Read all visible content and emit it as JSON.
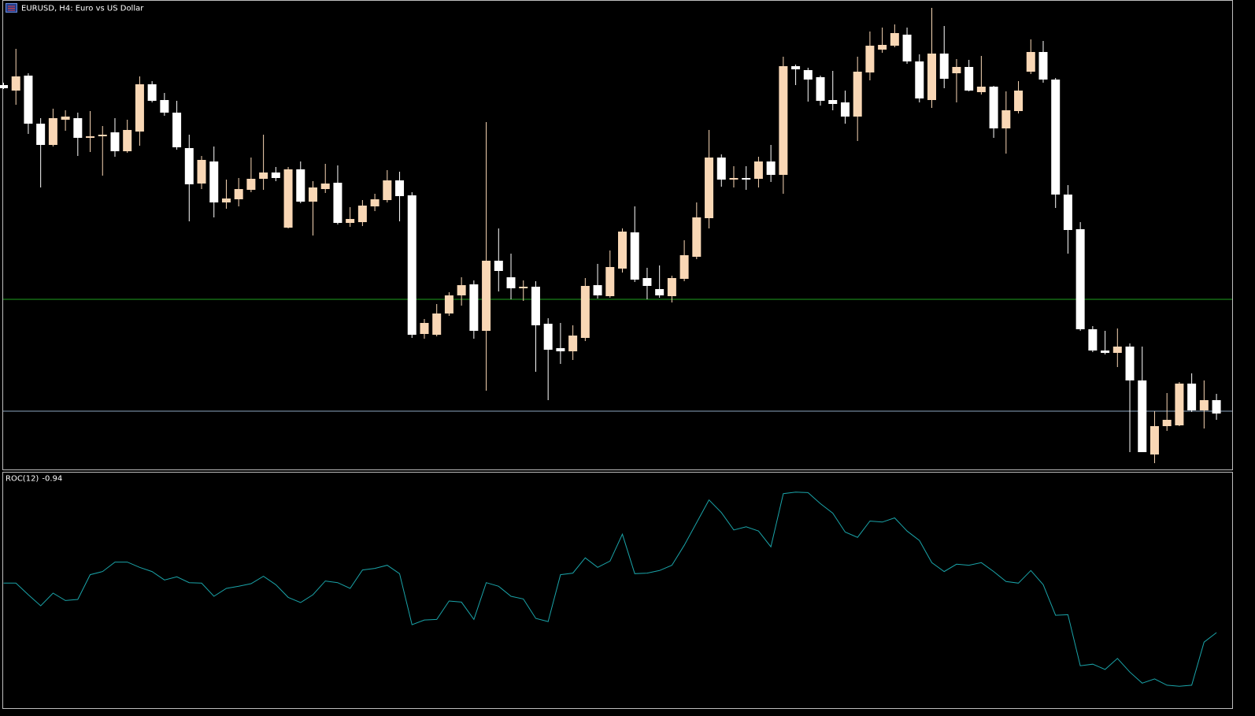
{
  "chart_data": [
    {
      "type": "candlestick",
      "title": "EURUSD, H4:  Euro vs US Dollar",
      "ylim": [
        3,
        600
      ],
      "up_color": "#f9d7b5",
      "down_color": "#ffffff",
      "open": [
        492,
        485,
        504,
        443,
        416,
        448,
        450,
        425,
        427,
        432,
        408,
        433,
        493,
        473,
        457,
        412,
        367,
        395,
        343,
        347,
        359,
        373,
        381,
        311,
        385,
        344,
        360,
        368,
        317,
        318,
        338,
        346,
        371,
        352,
        176,
        175,
        202,
        225,
        239,
        180,
        269,
        248,
        234,
        236,
        189,
        158,
        154,
        171,
        238,
        224,
        259,
        305,
        247,
        233,
        224,
        246,
        274,
        323,
        400,
        372,
        374,
        373,
        395,
        378,
        516,
        511,
        502,
        473,
        470,
        452,
        508,
        537,
        542,
        556,
        522,
        473,
        532,
        507,
        515,
        483,
        490,
        437,
        459,
        509,
        534,
        499,
        353,
        309,
        182,
        155,
        152,
        160,
        117,
        23,
        59,
        60,
        113,
        79,
        92
      ],
      "high": [
        495,
        538,
        507,
        450,
        462,
        460,
        457,
        459,
        440,
        450,
        448,
        503,
        497,
        482,
        472,
        429,
        402,
        414,
        372,
        374,
        400,
        429,
        388,
        388,
        395,
        370,
        392,
        390,
        337,
        346,
        354,
        384,
        382,
        356,
        195,
        214,
        229,
        248,
        244,
        445,
        310,
        278,
        244,
        243,
        196,
        190,
        187,
        247,
        265,
        282,
        310,
        338,
        260,
        263,
        250,
        295,
        343,
        435,
        404,
        389,
        389,
        401,
        416,
        528,
        518,
        514,
        504,
        510,
        485,
        528,
        560,
        565,
        569,
        565,
        531,
        590,
        567,
        525,
        524,
        529,
        491,
        484,
        497,
        550,
        548,
        501,
        365,
        318,
        186,
        180,
        183,
        164,
        160,
        78,
        101,
        115,
        126,
        117,
        100
      ],
      "low": [
        487,
        467,
        430,
        362,
        414,
        434,
        402,
        407,
        377,
        401,
        406,
        415,
        470,
        453,
        410,
        319,
        360,
        324,
        335,
        338,
        356,
        359,
        370,
        310,
        342,
        301,
        355,
        315,
        312,
        313,
        332,
        343,
        319,
        171,
        170,
        173,
        199,
        212,
        170,
        104,
        230,
        220,
        218,
        128,
        92,
        138,
        143,
        167,
        221,
        222,
        254,
        242,
        220,
        222,
        216,
        243,
        271,
        310,
        363,
        362,
        359,
        362,
        369,
        354,
        492,
        471,
        466,
        460,
        443,
        421,
        498,
        533,
        540,
        519,
        470,
        463,
        488,
        470,
        484,
        480,
        425,
        405,
        456,
        506,
        495,
        336,
        278,
        180,
        153,
        150,
        134,
        26,
        26,
        12,
        53,
        59,
        77,
        56,
        67
      ],
      "close": [
        488,
        503,
        443,
        416,
        450,
        452,
        425,
        427,
        429,
        408,
        435,
        493,
        472,
        457,
        413,
        366,
        397,
        343,
        348,
        360,
        373,
        381,
        374,
        385,
        344,
        362,
        367,
        317,
        322,
        339,
        347,
        371,
        351,
        175,
        190,
        202,
        225,
        238,
        180,
        269,
        256,
        234,
        236,
        187,
        156,
        154,
        174,
        237,
        225,
        261,
        306,
        245,
        237,
        225,
        247,
        276,
        324,
        400,
        372,
        374,
        372,
        395,
        378,
        516,
        512,
        499,
        472,
        468,
        452,
        509,
        542,
        543,
        558,
        522,
        475,
        532,
        500,
        515,
        485,
        490,
        437,
        460,
        485,
        534,
        499,
        353,
        308,
        182,
        155,
        152,
        160,
        117,
        26,
        59,
        67,
        113,
        79,
        92,
        75
      ],
      "hlines": [
        {
          "value": 220,
          "color": "#1f9f1f"
        },
        {
          "value": 78,
          "color": "#8ca6c0"
        }
      ]
    },
    {
      "type": "line",
      "title": "ROC(12)",
      "ylim": [
        -2.3,
        2.1
      ],
      "series": [
        {
          "name": "ROC(12)",
          "color": "#1aa3a8",
          "values": [
            0,
            0,
            -0.22,
            -0.43,
            -0.19,
            -0.33,
            -0.31,
            0.16,
            0.22,
            0.4,
            0.4,
            0.3,
            0.22,
            0.06,
            0.12,
            0.01,
            0,
            -0.25,
            -0.1,
            -0.06,
            -0.01,
            0.13,
            -0.03,
            -0.27,
            -0.37,
            -0.22,
            0.04,
            0.01,
            -0.1,
            0.25,
            0.28,
            0.34,
            0.18,
            -0.79,
            -0.7,
            -0.69,
            -0.34,
            -0.36,
            -0.69,
            0.01,
            -0.06,
            -0.25,
            -0.3,
            -0.67,
            -0.73,
            0.16,
            0.19,
            0.48,
            0.3,
            0.42,
            0.93,
            0.18,
            0.19,
            0.24,
            0.34,
            0.72,
            1.15,
            1.58,
            1.34,
            1.01,
            1.07,
            0.99,
            0.69,
            1.7,
            1.73,
            1.72,
            1.51,
            1.33,
            0.97,
            0.87,
            1.18,
            1.16,
            1.24,
            0.99,
            0.81,
            0.39,
            0.22,
            0.36,
            0.34,
            0.39,
            0.22,
            0.03,
            0,
            0.24,
            -0.03,
            -0.61,
            -0.6,
            -1.57,
            -1.54,
            -1.64,
            -1.43,
            -1.69,
            -1.9,
            -1.82,
            -1.94,
            -1.96,
            -1.94,
            -1.12,
            -0.94
          ]
        }
      ]
    }
  ]
}
